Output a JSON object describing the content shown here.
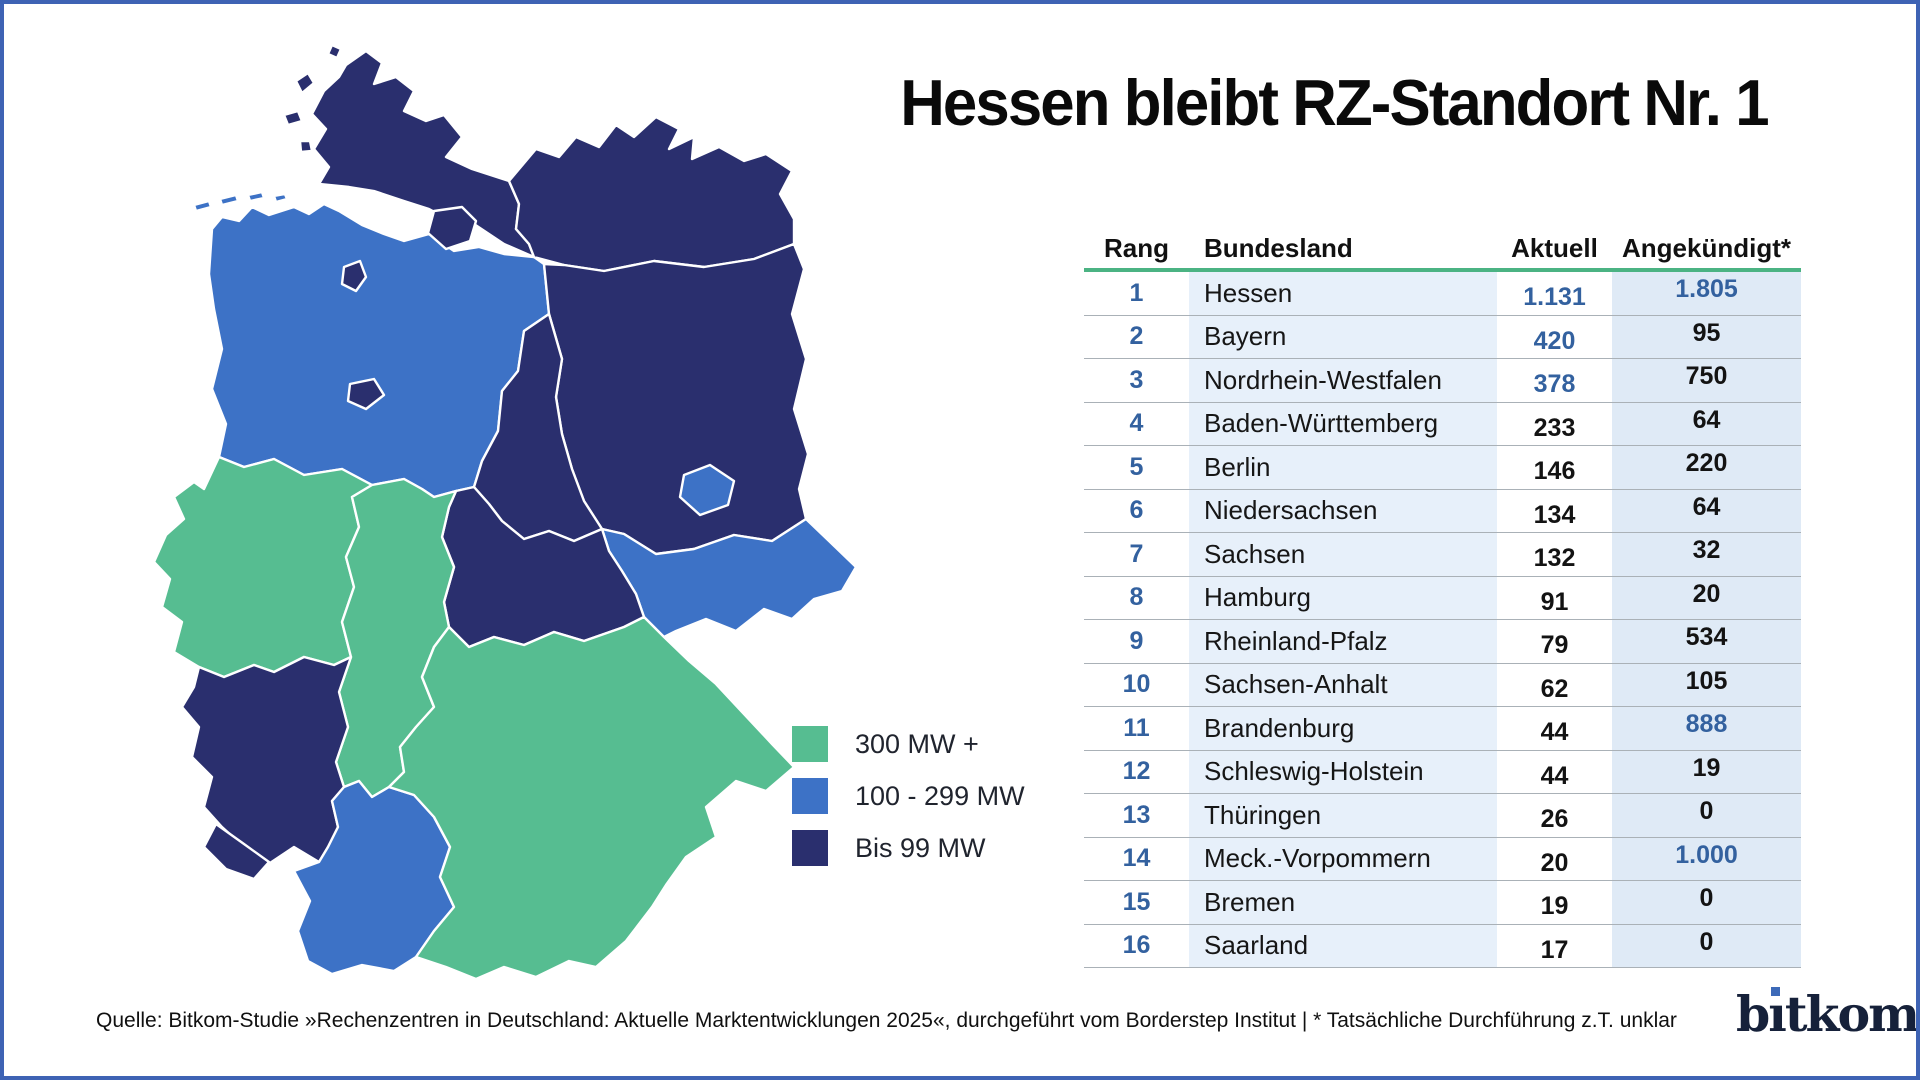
{
  "title": "Hessen bleibt RZ-Standort Nr. 1",
  "colors": {
    "frame_border": "#3e63b4",
    "category_high": "#56bd91",
    "category_mid": "#3d72c6",
    "category_low": "#2a2f6e",
    "table_rule_green": "#4bb383",
    "col_state_bg": "#e7f0fa",
    "col_announced_bg": "#dfeaf6",
    "highlight_blue": "#33619f",
    "row_divider": "#aab1b7"
  },
  "legend": [
    {
      "key": "high",
      "label": "300 MW +",
      "color": "#56bd91"
    },
    {
      "key": "mid",
      "label": "100 - 299 MW",
      "color": "#3d72c6"
    },
    {
      "key": "low",
      "label": "Bis 99 MW",
      "color": "#2a2f6e"
    }
  ],
  "table": {
    "columns": [
      "Rang",
      "Bundesland",
      "Aktuell",
      "Angekündigt*"
    ],
    "rows": [
      {
        "rank": "1",
        "state": "Hessen",
        "aktuell": "1.131",
        "angekuendigt": "1.805",
        "aktuell_hl": true,
        "ang_hl": true
      },
      {
        "rank": "2",
        "state": "Bayern",
        "aktuell": "420",
        "angekuendigt": "95",
        "aktuell_hl": true,
        "ang_hl": false
      },
      {
        "rank": "3",
        "state": "Nordrhein-Westfalen",
        "aktuell": "378",
        "angekuendigt": "750",
        "aktuell_hl": true,
        "ang_hl": false
      },
      {
        "rank": "4",
        "state": "Baden-Württemberg",
        "aktuell": "233",
        "angekuendigt": "64",
        "aktuell_hl": false,
        "ang_hl": false
      },
      {
        "rank": "5",
        "state": "Berlin",
        "aktuell": "146",
        "angekuendigt": "220",
        "aktuell_hl": false,
        "ang_hl": false
      },
      {
        "rank": "6",
        "state": "Niedersachsen",
        "aktuell": "134",
        "angekuendigt": "64",
        "aktuell_hl": false,
        "ang_hl": false
      },
      {
        "rank": "7",
        "state": "Sachsen",
        "aktuell": "132",
        "angekuendigt": "32",
        "aktuell_hl": false,
        "ang_hl": false
      },
      {
        "rank": "8",
        "state": "Hamburg",
        "aktuell": "91",
        "angekuendigt": "20",
        "aktuell_hl": false,
        "ang_hl": false
      },
      {
        "rank": "9",
        "state": "Rheinland-Pfalz",
        "aktuell": "79",
        "angekuendigt": "534",
        "aktuell_hl": false,
        "ang_hl": false
      },
      {
        "rank": "10",
        "state": "Sachsen-Anhalt",
        "aktuell": "62",
        "angekuendigt": "105",
        "aktuell_hl": false,
        "ang_hl": false
      },
      {
        "rank": "11",
        "state": "Brandenburg",
        "aktuell": "44",
        "angekuendigt": "888",
        "aktuell_hl": false,
        "ang_hl": true
      },
      {
        "rank": "12",
        "state": "Schleswig-Holstein",
        "aktuell": "44",
        "angekuendigt": "19",
        "aktuell_hl": false,
        "ang_hl": false
      },
      {
        "rank": "13",
        "state": "Thüringen",
        "aktuell": "26",
        "angekuendigt": "0",
        "aktuell_hl": false,
        "ang_hl": false
      },
      {
        "rank": "14",
        "state": "Meck.-Vorpommern",
        "aktuell": "20",
        "angekuendigt": "1.000",
        "aktuell_hl": false,
        "ang_hl": true
      },
      {
        "rank": "15",
        "state": "Bremen",
        "aktuell": "19",
        "angekuendigt": "0",
        "aktuell_hl": false,
        "ang_hl": false
      },
      {
        "rank": "16",
        "state": "Saarland",
        "aktuell": "17",
        "angekuendigt": "0",
        "aktuell_hl": false,
        "ang_hl": false
      }
    ]
  },
  "map": {
    "states": [
      {
        "id": "ni",
        "name": "Niedersachsen",
        "category": "mid"
      },
      {
        "id": "sh",
        "name": "Schleswig-Holstein",
        "category": "low"
      },
      {
        "id": "mv",
        "name": "Mecklenburg-Vorpommern",
        "category": "low"
      },
      {
        "id": "bb",
        "name": "Brandenburg",
        "category": "low"
      },
      {
        "id": "st",
        "name": "Sachsen-Anhalt",
        "category": "low"
      },
      {
        "id": "sn",
        "name": "Sachsen",
        "category": "mid"
      },
      {
        "id": "th",
        "name": "Thüringen",
        "category": "low"
      },
      {
        "id": "nw",
        "name": "Nordrhein-Westfalen",
        "category": "high"
      },
      {
        "id": "he",
        "name": "Hessen",
        "category": "high"
      },
      {
        "id": "rp",
        "name": "Rheinland-Pfalz",
        "category": "low"
      },
      {
        "id": "bw",
        "name": "Baden-Württemberg",
        "category": "mid"
      },
      {
        "id": "by",
        "name": "Bayern",
        "category": "high"
      },
      {
        "id": "sl",
        "name": "Saarland",
        "category": "low"
      },
      {
        "id": "hh",
        "name": "Hamburg",
        "category": "low"
      },
      {
        "id": "hb",
        "name": "Bremen",
        "category": "low"
      },
      {
        "id": "be",
        "name": "Berlin",
        "category": "mid"
      }
    ]
  },
  "footer": {
    "text": "Quelle: Bitkom-Studie »Rechenzentren in Deutschland: Aktuelle Marktentwicklungen 2025«, durchgeführt vom Borderstep Institut  | * Tatsächliche Durchführung z.T. unklar"
  },
  "logo": {
    "pre": "b",
    "i": "ı",
    "post": "tkom",
    "text": "bitkom"
  },
  "chart_data": {
    "type": "table",
    "title": "Hessen bleibt RZ-Standort Nr. 1",
    "columns": [
      "Rang",
      "Bundesland",
      "Aktuell",
      "Angekündigt*"
    ],
    "unit": "MW",
    "rows": [
      [
        1,
        "Hessen",
        1131,
        1805
      ],
      [
        2,
        "Bayern",
        420,
        95
      ],
      [
        3,
        "Nordrhein-Westfalen",
        378,
        750
      ],
      [
        4,
        "Baden-Württemberg",
        233,
        64
      ],
      [
        5,
        "Berlin",
        146,
        220
      ],
      [
        6,
        "Niedersachsen",
        134,
        64
      ],
      [
        7,
        "Sachsen",
        132,
        32
      ],
      [
        8,
        "Hamburg",
        91,
        20
      ],
      [
        9,
        "Rheinland-Pfalz",
        79,
        534
      ],
      [
        10,
        "Sachsen-Anhalt",
        62,
        105
      ],
      [
        11,
        "Brandenburg",
        44,
        888
      ],
      [
        12,
        "Schleswig-Holstein",
        44,
        19
      ],
      [
        13,
        "Thüringen",
        26,
        0
      ],
      [
        14,
        "Meck.-Vorpommern",
        20,
        1000
      ],
      [
        15,
        "Bremen",
        19,
        0
      ],
      [
        16,
        "Saarland",
        17,
        0
      ]
    ],
    "choropleth": {
      "300 MW +": [
        "Hessen",
        "Bayern",
        "Nordrhein-Westfalen"
      ],
      "100 - 299 MW": [
        "Baden-Württemberg",
        "Berlin",
        "Niedersachsen",
        "Sachsen"
      ],
      "Bis 99 MW": [
        "Hamburg",
        "Rheinland-Pfalz",
        "Sachsen-Anhalt",
        "Brandenburg",
        "Schleswig-Holstein",
        "Thüringen",
        "Meck.-Vorpommern",
        "Bremen",
        "Saarland"
      ]
    }
  }
}
